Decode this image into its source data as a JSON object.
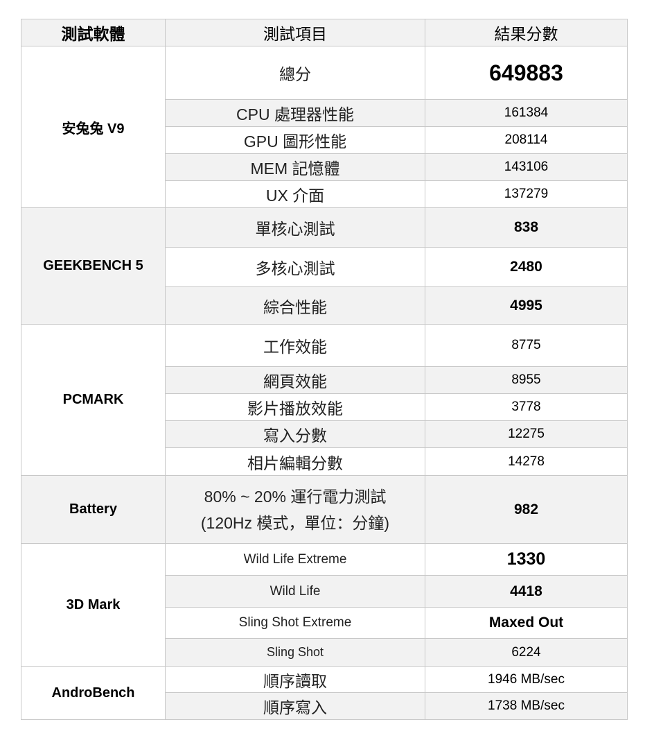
{
  "header": {
    "software": "測試軟體",
    "item": "測試項目",
    "result": "結果分數"
  },
  "groups": [
    {
      "software": "安兔兔  V9",
      "rows": [
        {
          "item": "總分",
          "value": "649883"
        },
        {
          "item": "CPU  處理器性能",
          "value": "161384"
        },
        {
          "item": "GPU  圖形性能",
          "value": "208114"
        },
        {
          "item": "MEM  記憶體",
          "value": "143106"
        },
        {
          "item": "UX  介面",
          "value": "137279"
        }
      ]
    },
    {
      "software": "GEEKBENCH 5",
      "rows": [
        {
          "item": "單核心測試",
          "value": "838"
        },
        {
          "item": "多核心測試",
          "value": "2480"
        },
        {
          "item": "綜合性能",
          "value": "4995"
        }
      ]
    },
    {
      "software": "PCMARK",
      "rows": [
        {
          "item": "工作效能",
          "value": "8775"
        },
        {
          "item": "網頁效能",
          "value": "8955"
        },
        {
          "item": "影片播放效能",
          "value": "3778"
        },
        {
          "item": "寫入分數",
          "value": "12275"
        },
        {
          "item": "相片編輯分數",
          "value": "14278"
        }
      ]
    },
    {
      "software": "Battery",
      "rows": [
        {
          "item": "80% ~ 20%  運行電力測試",
          "item_line2": "(120Hz 模式，單位：分鐘)",
          "value": "982"
        }
      ]
    },
    {
      "software": "3D Mark",
      "rows": [
        {
          "item": "Wild Life Extreme",
          "value": "1330"
        },
        {
          "item": "Wild Life",
          "value": "4418"
        },
        {
          "item": "Sling Shot Extreme",
          "value": "Maxed Out"
        },
        {
          "item": "Sling Shot",
          "value": "6224"
        }
      ]
    },
    {
      "software": "AndroBench",
      "rows": [
        {
          "item": "順序讀取",
          "value": "1946 MB/sec"
        },
        {
          "item": "順序寫入",
          "value": "1738 MB/sec"
        }
      ]
    }
  ],
  "colors": {
    "shade": "#f2f2f2",
    "border": "#c8c8c8"
  }
}
